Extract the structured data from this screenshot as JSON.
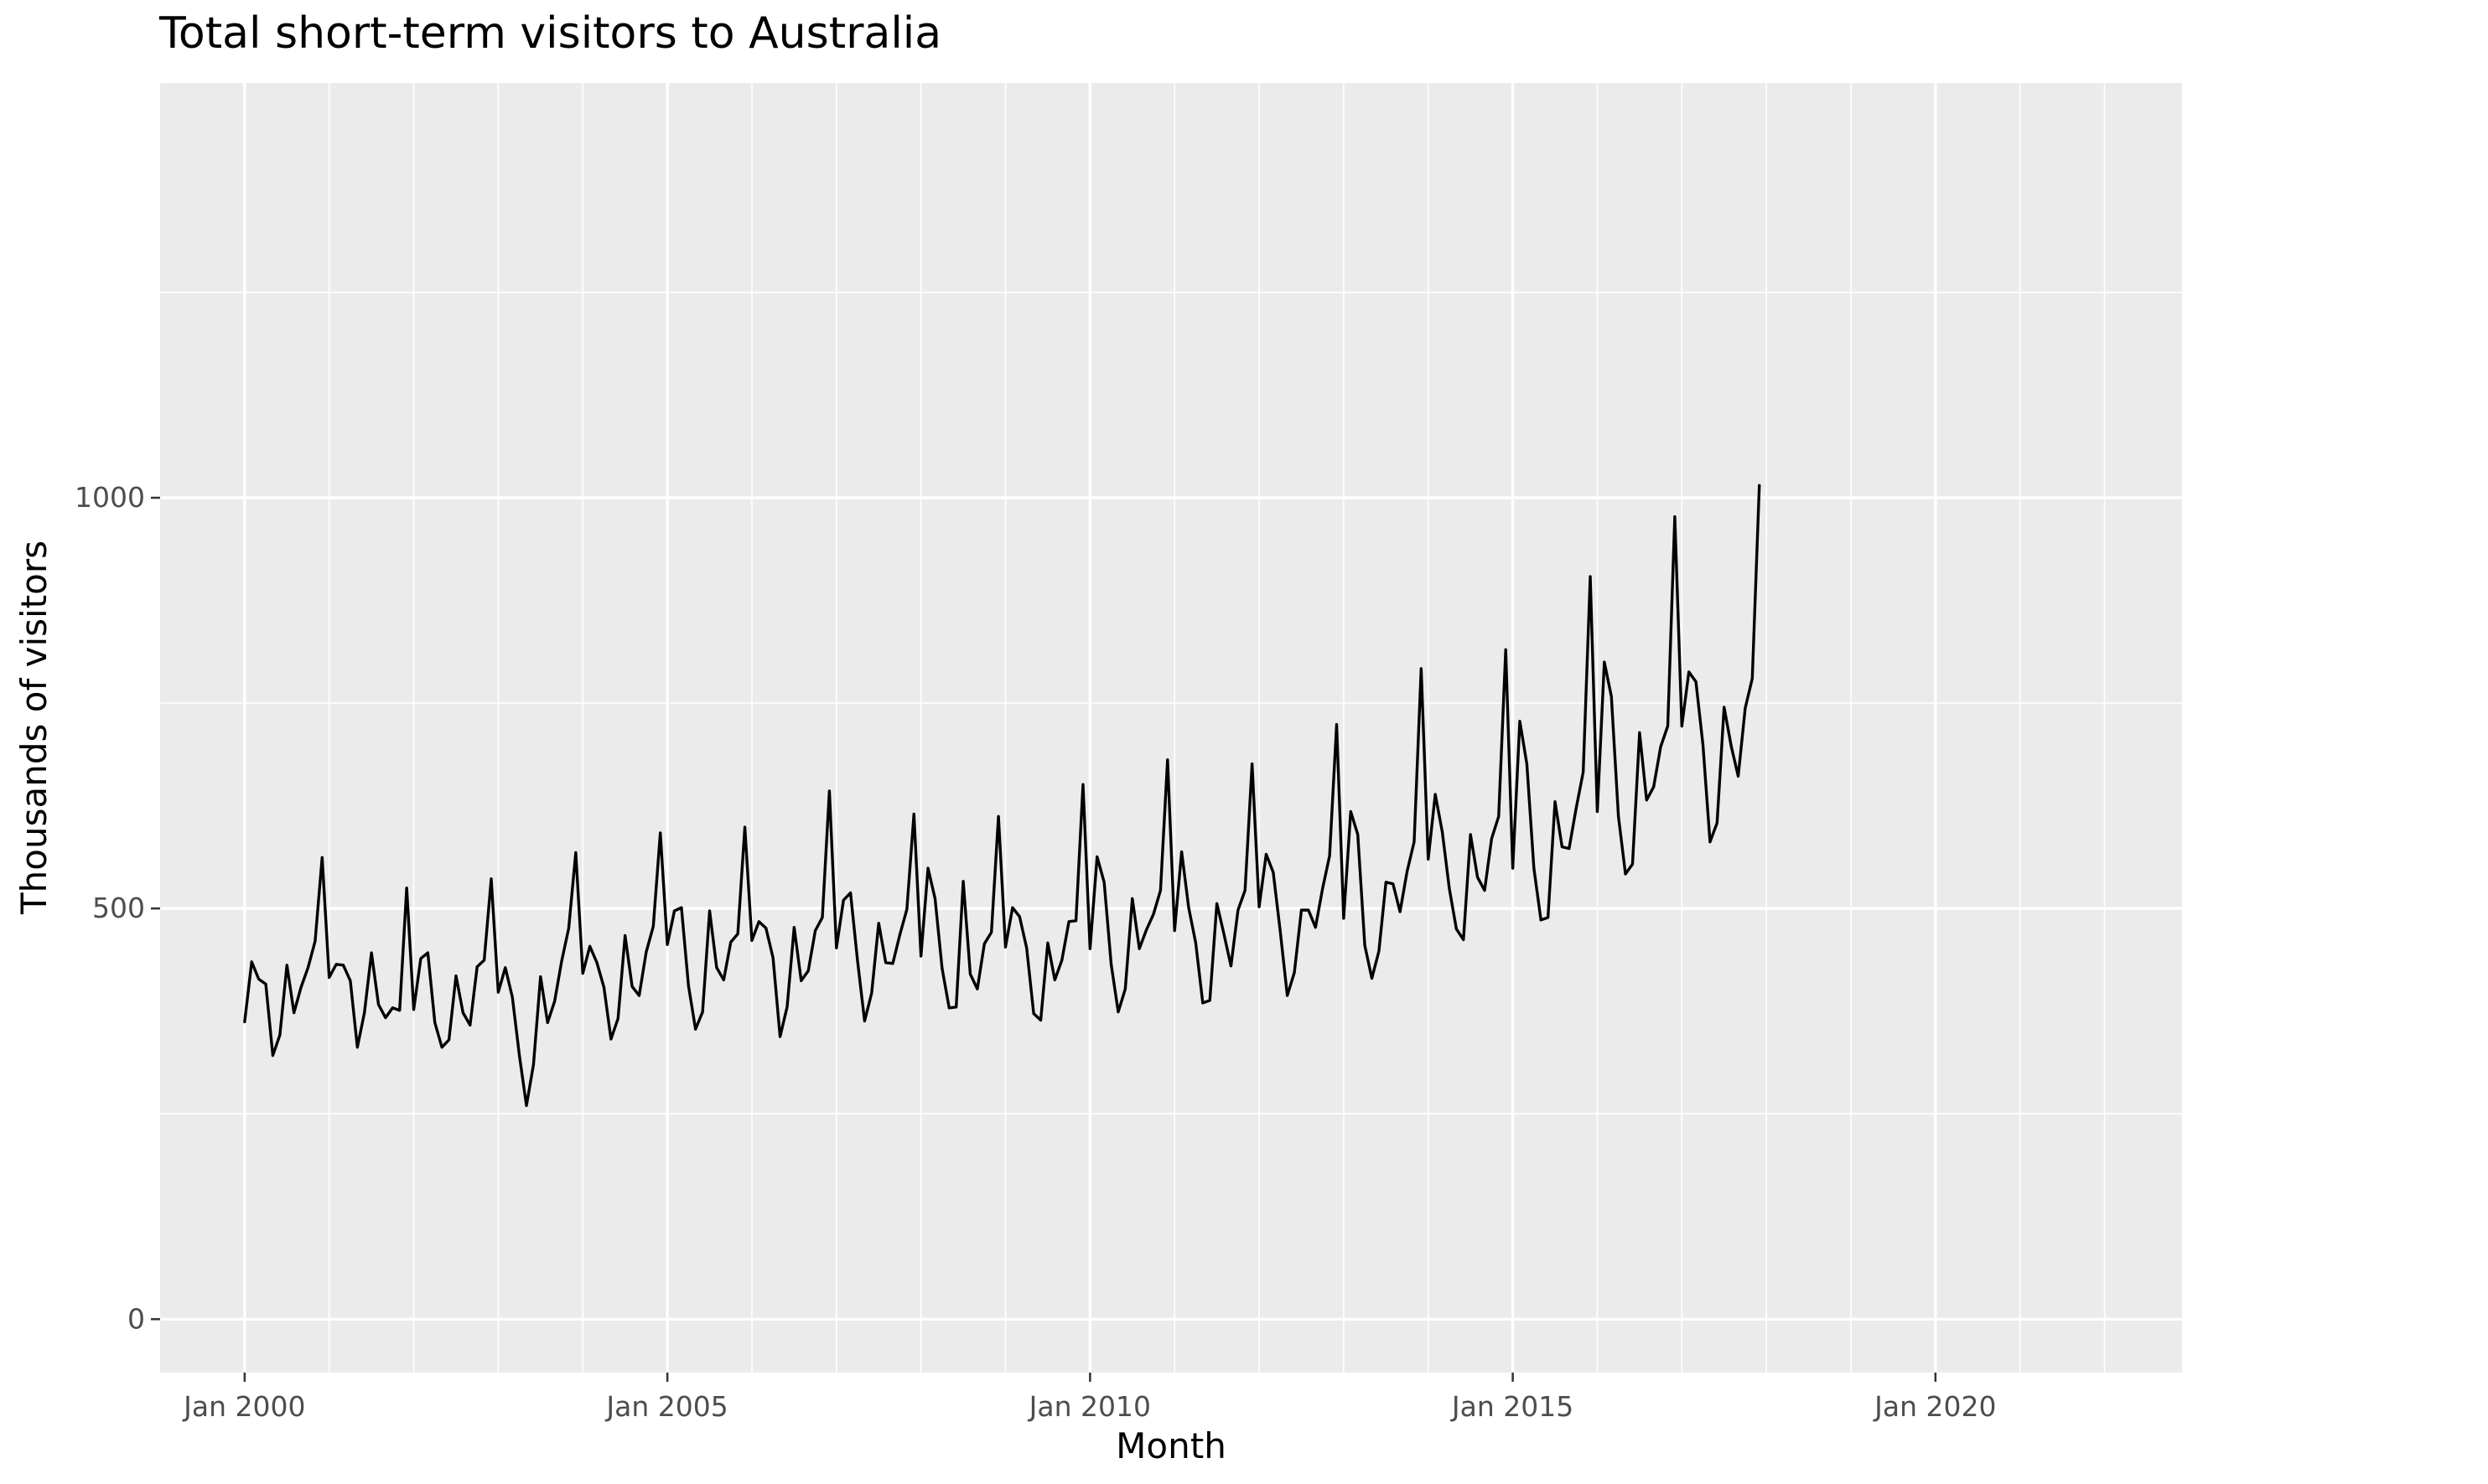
{
  "chart_data": {
    "type": "line",
    "title": "Total short-term visitors to Australia",
    "xlabel": "Month",
    "ylabel": "Thousands of visitors",
    "xlim": [
      "1999-01",
      "2022-12"
    ],
    "ylim": [
      -65,
      1505
    ],
    "y_ticks": [
      0,
      500,
      1000
    ],
    "y_tick_labels": [
      "0",
      "500",
      "1000"
    ],
    "y_minor_ticks": [
      250,
      750,
      1250
    ],
    "x_ticks": [
      "2000-01",
      "2005-01",
      "2010-01",
      "2015-01",
      "2020-01"
    ],
    "x_tick_labels": [
      "Jan 2000",
      "Jan 2005",
      "Jan 2010",
      "Jan 2015",
      "Jan 2020"
    ],
    "x_minor_ticks": [
      "2001-01",
      "2002-01",
      "2003-01",
      "2004-01",
      "2006-01",
      "2007-01",
      "2008-01",
      "2009-01",
      "2011-01",
      "2012-01",
      "2013-01",
      "2014-01",
      "2016-01",
      "2017-01",
      "2018-01",
      "2019-01",
      "2021-01",
      "2022-01"
    ],
    "grid": true,
    "background": "#ebebeb",
    "line_color": "#000000",
    "x_start": "2000-01",
    "series": [
      {
        "values": [
          362,
          435,
          414,
          408,
          321,
          346,
          431,
          373,
          404,
          428,
          460,
          562,
          416,
          432,
          431,
          412,
          331,
          373,
          446,
          383,
          367,
          379,
          376,
          525,
          377,
          439,
          446,
          361,
          331,
          340,
          418,
          373,
          358,
          429,
          437,
          536,
          398,
          428,
          392,
          321,
          260,
          310,
          417,
          361,
          387,
          436,
          476,
          568,
          421,
          454,
          434,
          404,
          341,
          366,
          467,
          405,
          394,
          447,
          478,
          592,
          456,
          497,
          501,
          406,
          353,
          374,
          497,
          428,
          413,
          459,
          469,
          599,
          461,
          484,
          476,
          440,
          344,
          380,
          477,
          412,
          424,
          473,
          489,
          643,
          452,
          510,
          519,
          436,
          363,
          397,
          482,
          434,
          433,
          468,
          499,
          615,
          442,
          549,
          512,
          427,
          379,
          380,
          533,
          420,
          402,
          457,
          471,
          612,
          453,
          501,
          490,
          452,
          372,
          364,
          458,
          413,
          437,
          484,
          485,
          651,
          451,
          563,
          532,
          432,
          374,
          402,
          512,
          451,
          474,
          493,
          522,
          681,
          473,
          569,
          501,
          458,
          385,
          388,
          506,
          469,
          430,
          498,
          522,
          676,
          502,
          566,
          544,
          472,
          394,
          422,
          498,
          498,
          477,
          524,
          564,
          724,
          488,
          618,
          590,
          455,
          415,
          448,
          532,
          530,
          496,
          545,
          581,
          792,
          560,
          639,
          593,
          524,
          475,
          462,
          590,
          538,
          522,
          585,
          612,
          815,
          549,
          728,
          676,
          549,
          486,
          489,
          630,
          575,
          573,
          622,
          666,
          904,
          618,
          800,
          758,
          612,
          542,
          554,
          714,
          632,
          648,
          697,
          722,
          977,
          722,
          788,
          776,
          699,
          581,
          604,
          745,
          698,
          661,
          744,
          780,
          1015
        ]
      }
    ]
  }
}
